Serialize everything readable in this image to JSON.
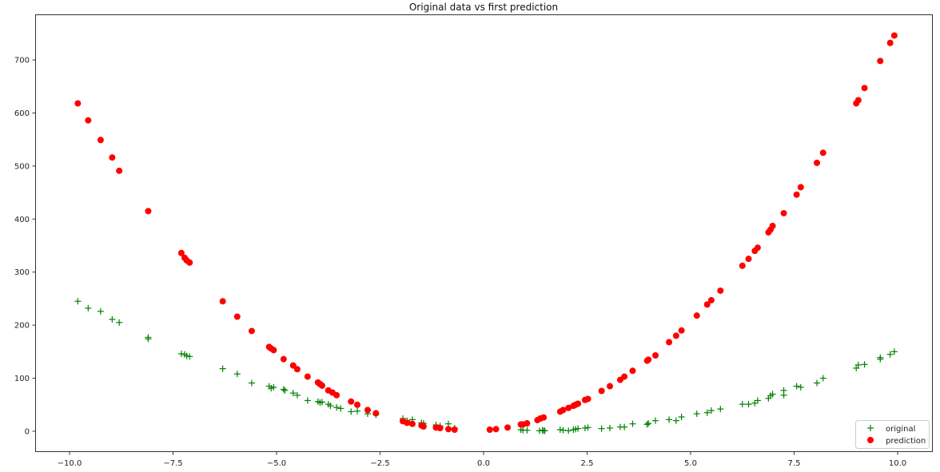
{
  "chart_data": {
    "type": "scatter",
    "title": "Original data vs first prediction",
    "xlabel": "",
    "ylabel": "",
    "xlim": [
      -10.8,
      10.8
    ],
    "ylim": [
      -35,
      782
    ],
    "grid": false,
    "legend_position": "lower right",
    "x_ticks": [
      -10.0,
      -7.5,
      -5.0,
      -2.5,
      0.0,
      2.5,
      5.0,
      7.5,
      10.0
    ],
    "x_tick_labels": [
      "−10.0",
      "−7.5",
      "−5.0",
      "−2.5",
      "0.0",
      "2.5",
      "5.0",
      "7.5",
      "10.0"
    ],
    "y_ticks": [
      0,
      100,
      200,
      300,
      400,
      500,
      600,
      700
    ],
    "y_tick_labels": [
      "0",
      "100",
      "200",
      "300",
      "400",
      "500",
      "600",
      "700"
    ],
    "series": [
      {
        "name": "original",
        "marker": "plus",
        "color": "#008000",
        "points": [
          [
            -9.8,
            245
          ],
          [
            -9.55,
            232
          ],
          [
            -9.25,
            226
          ],
          [
            -8.97,
            211
          ],
          [
            -8.8,
            205
          ],
          [
            -8.1,
            177
          ],
          [
            -8.1,
            174
          ],
          [
            -7.3,
            146
          ],
          [
            -7.22,
            145
          ],
          [
            -7.17,
            142
          ],
          [
            -7.1,
            141
          ],
          [
            -6.3,
            118
          ],
          [
            -5.95,
            108
          ],
          [
            -5.6,
            91
          ],
          [
            -5.18,
            85
          ],
          [
            -5.13,
            81
          ],
          [
            -5.07,
            83
          ],
          [
            -4.83,
            79
          ],
          [
            -4.8,
            77
          ],
          [
            -4.6,
            72
          ],
          [
            -4.5,
            68
          ],
          [
            -4.25,
            58
          ],
          [
            -4.0,
            56
          ],
          [
            -3.95,
            54
          ],
          [
            -3.9,
            55
          ],
          [
            -3.75,
            51
          ],
          [
            -3.7,
            48
          ],
          [
            -3.55,
            45
          ],
          [
            -3.45,
            43
          ],
          [
            -3.2,
            37
          ],
          [
            -3.05,
            38
          ],
          [
            -2.8,
            33
          ],
          [
            -2.6,
            31
          ],
          [
            -1.95,
            24
          ],
          [
            -1.85,
            20
          ],
          [
            -1.72,
            22
          ],
          [
            -1.5,
            16
          ],
          [
            -1.45,
            15
          ],
          [
            -1.15,
            12
          ],
          [
            -1.05,
            10
          ],
          [
            -0.85,
            14
          ],
          [
            -0.7,
            6
          ],
          [
            0.9,
            3
          ],
          [
            0.95,
            2
          ],
          [
            1.05,
            2
          ],
          [
            1.35,
            1
          ],
          [
            1.42,
            2
          ],
          [
            1.45,
            1
          ],
          [
            1.48,
            1
          ],
          [
            1.85,
            3
          ],
          [
            1.92,
            2
          ],
          [
            2.05,
            1
          ],
          [
            2.17,
            3
          ],
          [
            2.22,
            4
          ],
          [
            2.28,
            5
          ],
          [
            2.45,
            6
          ],
          [
            2.52,
            7
          ],
          [
            2.85,
            5
          ],
          [
            3.05,
            6
          ],
          [
            3.3,
            8
          ],
          [
            3.4,
            8
          ],
          [
            3.6,
            14
          ],
          [
            3.95,
            13
          ],
          [
            3.98,
            15
          ],
          [
            4.15,
            20
          ],
          [
            4.48,
            22
          ],
          [
            4.65,
            20
          ],
          [
            4.78,
            27
          ],
          [
            5.15,
            33
          ],
          [
            5.4,
            35
          ],
          [
            5.5,
            39
          ],
          [
            5.72,
            42
          ],
          [
            6.25,
            51
          ],
          [
            6.4,
            51
          ],
          [
            6.55,
            53
          ],
          [
            6.62,
            58
          ],
          [
            6.88,
            62
          ],
          [
            6.93,
            67
          ],
          [
            6.98,
            70
          ],
          [
            7.25,
            68
          ],
          [
            7.25,
            77
          ],
          [
            7.56,
            85
          ],
          [
            7.66,
            83
          ],
          [
            8.05,
            91
          ],
          [
            8.2,
            100
          ],
          [
            9.0,
            119
          ],
          [
            9.05,
            125
          ],
          [
            9.2,
            126
          ],
          [
            9.58,
            136
          ],
          [
            9.58,
            139
          ],
          [
            9.82,
            145
          ],
          [
            9.92,
            150
          ]
        ]
      },
      {
        "name": "prediction",
        "marker": "circle",
        "color": "#ff0000",
        "points": [
          [
            -9.8,
            618
          ],
          [
            -9.55,
            586
          ],
          [
            -9.25,
            549
          ],
          [
            -8.97,
            516
          ],
          [
            -8.8,
            491
          ],
          [
            -8.1,
            415
          ],
          [
            -7.3,
            336
          ],
          [
            -7.22,
            327
          ],
          [
            -7.17,
            322
          ],
          [
            -7.1,
            318
          ],
          [
            -6.3,
            245
          ],
          [
            -5.95,
            216
          ],
          [
            -5.6,
            189
          ],
          [
            -5.18,
            159
          ],
          [
            -5.13,
            156
          ],
          [
            -5.07,
            153
          ],
          [
            -4.83,
            136
          ],
          [
            -4.6,
            124
          ],
          [
            -4.5,
            117
          ],
          [
            -4.25,
            103
          ],
          [
            -4.0,
            92
          ],
          [
            -3.95,
            89
          ],
          [
            -3.9,
            86
          ],
          [
            -3.75,
            77
          ],
          [
            -3.65,
            73
          ],
          [
            -3.55,
            68
          ],
          [
            -3.2,
            56
          ],
          [
            -3.05,
            50
          ],
          [
            -2.8,
            40
          ],
          [
            -2.6,
            34
          ],
          [
            -1.95,
            19
          ],
          [
            -1.85,
            16
          ],
          [
            -1.72,
            14
          ],
          [
            -1.5,
            11
          ],
          [
            -1.45,
            9
          ],
          [
            -1.15,
            7
          ],
          [
            -1.05,
            6
          ],
          [
            -0.85,
            4
          ],
          [
            -0.7,
            3
          ],
          [
            0.15,
            3
          ],
          [
            0.3,
            4
          ],
          [
            0.58,
            7
          ],
          [
            0.9,
            13
          ],
          [
            0.95,
            13
          ],
          [
            1.05,
            15
          ],
          [
            1.3,
            21
          ],
          [
            1.37,
            24
          ],
          [
            1.45,
            26
          ],
          [
            1.85,
            37
          ],
          [
            1.92,
            40
          ],
          [
            2.05,
            44
          ],
          [
            2.17,
            48
          ],
          [
            2.22,
            50
          ],
          [
            2.28,
            52
          ],
          [
            2.45,
            59
          ],
          [
            2.52,
            61
          ],
          [
            2.85,
            76
          ],
          [
            3.05,
            85
          ],
          [
            3.3,
            97
          ],
          [
            3.4,
            103
          ],
          [
            3.6,
            114
          ],
          [
            3.95,
            133
          ],
          [
            3.98,
            135
          ],
          [
            4.15,
            143
          ],
          [
            4.48,
            168
          ],
          [
            4.65,
            180
          ],
          [
            4.78,
            190
          ],
          [
            5.15,
            218
          ],
          [
            5.4,
            239
          ],
          [
            5.5,
            247
          ],
          [
            5.72,
            265
          ],
          [
            6.25,
            312
          ],
          [
            6.4,
            325
          ],
          [
            6.55,
            340
          ],
          [
            6.62,
            346
          ],
          [
            6.88,
            375
          ],
          [
            6.93,
            380
          ],
          [
            6.98,
            387
          ],
          [
            7.25,
            411
          ],
          [
            7.56,
            446
          ],
          [
            7.66,
            460
          ],
          [
            8.05,
            506
          ],
          [
            8.2,
            525
          ],
          [
            9.0,
            618
          ],
          [
            9.05,
            624
          ],
          [
            9.2,
            647
          ],
          [
            9.58,
            698
          ],
          [
            9.82,
            732
          ],
          [
            9.92,
            746
          ]
        ]
      }
    ]
  },
  "legend": {
    "items": [
      {
        "label": "original",
        "marker": "+",
        "color": "#008000"
      },
      {
        "label": "prediction",
        "marker": "●",
        "color": "#ff0000"
      }
    ]
  }
}
